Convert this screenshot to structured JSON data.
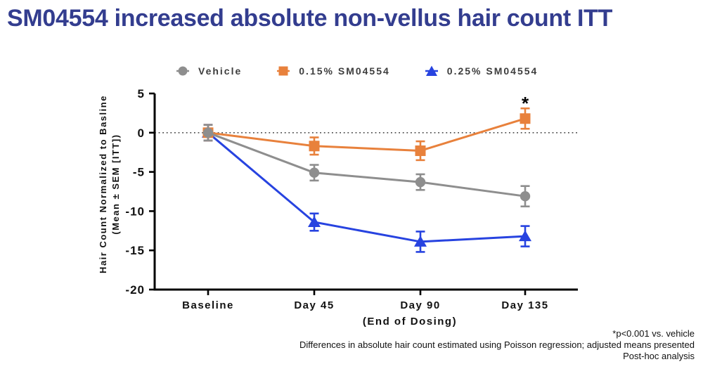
{
  "title": {
    "text": "SM04554 increased absolute non-vellus hair count ITT",
    "color": "#333D8F"
  },
  "chart_data": {
    "type": "line",
    "title": "",
    "categories": [
      "Baseline",
      "Day 45",
      "Day 90",
      "Day 135"
    ],
    "xlabel": "(End of Dosing)",
    "ylabel_line1": "Hair Count Normalized to Basline",
    "ylabel_line2": "(Mean ± SEM [ITT])",
    "ylim": [
      -20,
      5
    ],
    "yticks": [
      5,
      0,
      -5,
      -10,
      -15,
      -20
    ],
    "grid": false,
    "zero_reference_line": "dotted",
    "legend_position": "top",
    "series": [
      {
        "name": "Vehicle",
        "marker": "circle",
        "color": "#8E8E8E",
        "values": [
          0,
          -5.1,
          -6.3,
          -8.1
        ],
        "sem": [
          1.0,
          1.0,
          1.0,
          1.3
        ]
      },
      {
        "name": "0.15% SM04554",
        "marker": "square",
        "color": "#E8813C",
        "values": [
          0,
          -1.7,
          -2.3,
          1.8
        ],
        "sem": [
          1.0,
          1.1,
          1.2,
          1.3
        ]
      },
      {
        "name": "0.25% SM04554",
        "marker": "triangle",
        "color": "#2743E0",
        "values": [
          0,
          -11.4,
          -13.9,
          -13.2
        ],
        "sem": [
          1.0,
          1.1,
          1.3,
          1.3
        ]
      }
    ],
    "annotation": {
      "text": "*",
      "series": "0.15% SM04554",
      "x_index": 3
    }
  },
  "footnotes": {
    "line1": "*p<0.001 vs. vehicle",
    "line2": "Differences in absolute hair count estimated using Poisson regression; adjusted means presented",
    "line3": "Post-hoc analysis"
  }
}
